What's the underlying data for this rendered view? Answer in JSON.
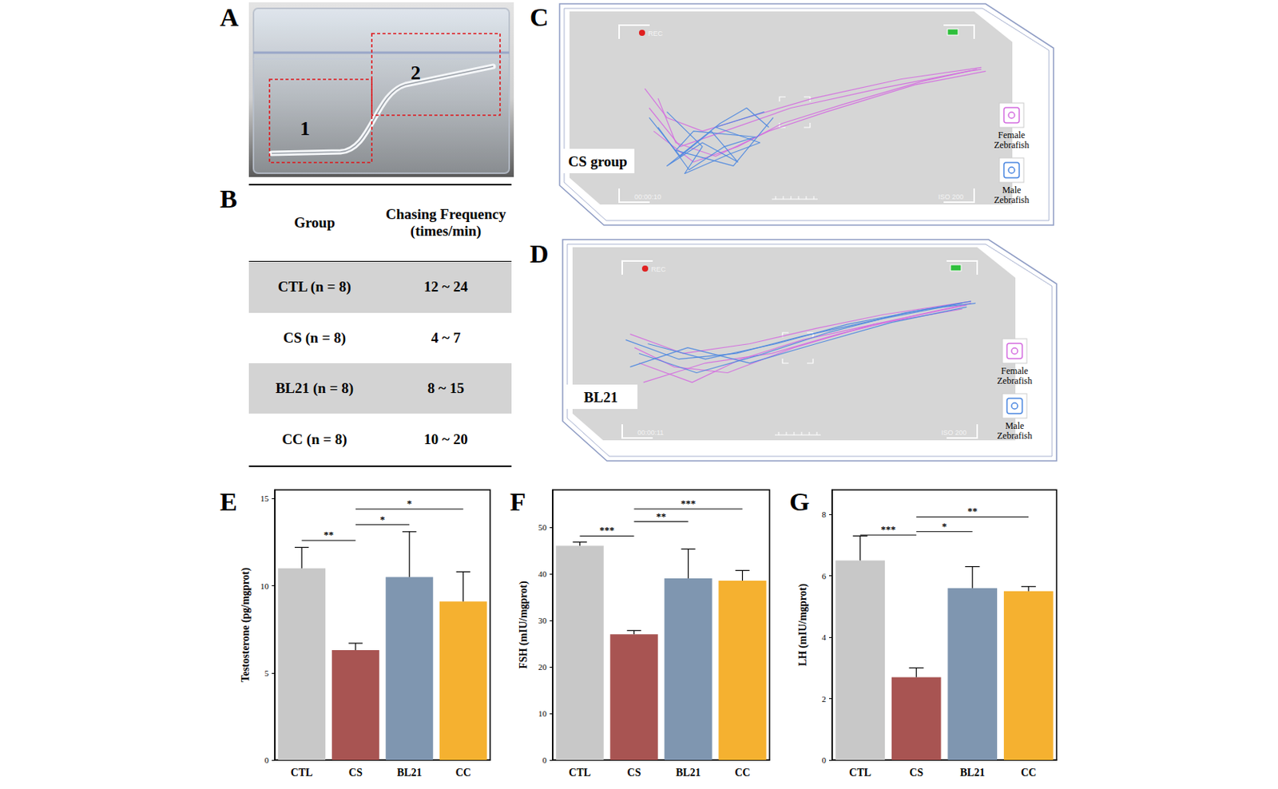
{
  "panels": {
    "A": {
      "letter": "A",
      "labels": [
        "1",
        "2"
      ]
    },
    "B": {
      "letter": "B",
      "table": {
        "header": [
          "Group",
          "Chasing Frequency (times/min)"
        ],
        "rows": [
          [
            "CTL (n = 8)",
            "12 ~ 24"
          ],
          [
            "CS (n = 8)",
            "4 ~ 7"
          ],
          [
            "BL21 (n = 8)",
            "8 ~ 15"
          ],
          [
            "CC (n = 8)",
            "10 ~ 20"
          ]
        ]
      }
    },
    "C": {
      "letter": "C",
      "label": "CS group",
      "camera": {
        "rec": "REC",
        "time": "00:00:10",
        "iso": "ISO 200"
      },
      "legend": [
        {
          "name": "Female Zebrafish",
          "color": "#d46ce0"
        },
        {
          "name": "Male Zebrafish",
          "color": "#4a86e0"
        }
      ],
      "tracks": {
        "female": [
          [
            [
              17,
              40
            ],
            [
              22,
              55
            ],
            [
              30,
              62
            ],
            [
              40,
              55
            ],
            [
              55,
              45
            ],
            [
              75,
              35
            ],
            [
              93,
              29
            ]
          ],
          [
            [
              18,
              50
            ],
            [
              25,
              70
            ],
            [
              35,
              62
            ],
            [
              50,
              50
            ],
            [
              70,
              40
            ],
            [
              90,
              31
            ],
            [
              93,
              30
            ]
          ],
          [
            [
              19,
              62
            ],
            [
              28,
              78
            ],
            [
              38,
              70
            ],
            [
              48,
              58
            ],
            [
              62,
              48
            ],
            [
              80,
              36
            ],
            [
              92,
              30
            ]
          ],
          [
            [
              20,
              45
            ],
            [
              24,
              68
            ],
            [
              33,
              75
            ],
            [
              45,
              62
            ],
            [
              58,
              52
            ],
            [
              78,
              38
            ],
            [
              94,
              31
            ]
          ]
        ],
        "male": [
          [
            [
              18,
              55
            ],
            [
              25,
              75
            ],
            [
              32,
              62
            ],
            [
              38,
              78
            ],
            [
              30,
              68
            ],
            [
              22,
              80
            ],
            [
              34,
              58
            ],
            [
              40,
              50
            ],
            [
              45,
              60
            ]
          ],
          [
            [
              20,
              60
            ],
            [
              27,
              82
            ],
            [
              35,
              70
            ],
            [
              42,
              65
            ],
            [
              28,
              62
            ],
            [
              24,
              72
            ],
            [
              37,
              80
            ],
            [
              46,
              55
            ]
          ],
          [
            [
              22,
              52
            ],
            [
              30,
              70
            ],
            [
              26,
              84
            ],
            [
              36,
              74
            ],
            [
              43,
              68
            ],
            [
              33,
              60
            ],
            [
              44,
              52
            ]
          ]
        ]
      }
    },
    "D": {
      "letter": "D",
      "label": "BL21",
      "camera": {
        "rec": "REC",
        "time": "00:00:11",
        "iso": "ISO 200"
      },
      "legend": [
        {
          "name": "Female Zebrafish",
          "color": "#d46ce0"
        },
        {
          "name": "Male Zebrafish",
          "color": "#4a86e0"
        }
      ],
      "tracks": {
        "female": [
          [
            [
              13,
              45
            ],
            [
              25,
              55
            ],
            [
              40,
              50
            ],
            [
              55,
              42
            ],
            [
              70,
              35
            ],
            [
              90,
              28
            ]
          ],
          [
            [
              15,
              60
            ],
            [
              27,
              70
            ],
            [
              38,
              58
            ],
            [
              52,
              48
            ],
            [
              72,
              38
            ],
            [
              89,
              30
            ]
          ],
          [
            [
              14,
              52
            ],
            [
              23,
              62
            ],
            [
              35,
              65
            ],
            [
              50,
              52
            ],
            [
              68,
              40
            ],
            [
              88,
              32
            ]
          ],
          [
            [
              16,
              70
            ],
            [
              30,
              60
            ],
            [
              45,
              55
            ],
            [
              60,
              45
            ],
            [
              78,
              35
            ],
            [
              90,
              29
            ]
          ]
        ],
        "male": [
          [
            [
              12,
              48
            ],
            [
              24,
              58
            ],
            [
              37,
              55
            ],
            [
              52,
              46
            ],
            [
              70,
              37
            ],
            [
              88,
              29
            ]
          ],
          [
            [
              15,
              55
            ],
            [
              28,
              65
            ],
            [
              42,
              56
            ],
            [
              58,
              44
            ],
            [
              75,
              34
            ],
            [
              90,
              28
            ]
          ],
          [
            [
              13,
              62
            ],
            [
              26,
              52
            ],
            [
              40,
              60
            ],
            [
              55,
              50
            ],
            [
              72,
              39
            ],
            [
              89,
              31
            ]
          ],
          [
            [
              17,
              50
            ],
            [
              30,
              58
            ],
            [
              46,
              50
            ],
            [
              62,
              40
            ],
            [
              80,
              32
            ],
            [
              91,
              29
            ]
          ]
        ]
      }
    }
  },
  "chart_data": [
    {
      "panel": "E",
      "type": "bar",
      "categories": [
        "CTL",
        "CS",
        "BL21",
        "CC"
      ],
      "values": [
        11.0,
        6.3,
        10.5,
        9.1
      ],
      "errors": [
        1.2,
        0.4,
        2.6,
        1.7
      ],
      "colors": [
        "#c8c8c8",
        "#a85452",
        "#7f96b0",
        "#f5b130"
      ],
      "y_label": "Testosterone (pg/mgprot)",
      "ylim": [
        0,
        15.5
      ],
      "yticks": [
        0,
        5,
        10,
        15
      ],
      "significance": [
        {
          "from": "CTL",
          "to": "CS",
          "y": 12.6,
          "label": "**"
        },
        {
          "from": "CS",
          "to": "BL21",
          "y": 13.5,
          "label": "*"
        },
        {
          "from": "CS",
          "to": "CC",
          "y": 14.4,
          "label": "*"
        }
      ]
    },
    {
      "panel": "F",
      "type": "bar",
      "categories": [
        "CTL",
        "CS",
        "BL21",
        "CC"
      ],
      "values": [
        46.0,
        27.0,
        39.0,
        38.5
      ],
      "errors": [
        0.8,
        0.8,
        6.3,
        2.2
      ],
      "colors": [
        "#c8c8c8",
        "#a85452",
        "#7f96b0",
        "#f5b130"
      ],
      "y_label": "FSH (mIU/mgprot)",
      "ylim": [
        0,
        58
      ],
      "yticks": [
        0,
        10,
        20,
        30,
        40,
        50
      ],
      "significance": [
        {
          "from": "CTL",
          "to": "CS",
          "y": 48.1,
          "label": "***"
        },
        {
          "from": "CS",
          "to": "BL21",
          "y": 51.2,
          "label": "**"
        },
        {
          "from": "CS",
          "to": "CC",
          "y": 53.9,
          "label": "***"
        }
      ]
    },
    {
      "panel": "G",
      "type": "bar",
      "categories": [
        "CTL",
        "CS",
        "BL21",
        "CC"
      ],
      "values": [
        6.5,
        2.7,
        5.6,
        5.5
      ],
      "errors": [
        0.8,
        0.3,
        0.7,
        0.15
      ],
      "colors": [
        "#c8c8c8",
        "#a85452",
        "#7f96b0",
        "#f5b130"
      ],
      "y_label": "LH (mIU/mgprot)",
      "ylim": [
        0,
        8.8
      ],
      "yticks": [
        0,
        2,
        4,
        6,
        8
      ],
      "significance": [
        {
          "from": "CTL",
          "to": "CS",
          "y": 7.33,
          "label": "***"
        },
        {
          "from": "CS",
          "to": "BL21",
          "y": 7.44,
          "label": "*"
        },
        {
          "from": "CS",
          "to": "CC",
          "y": 7.92,
          "label": "**"
        }
      ]
    }
  ]
}
